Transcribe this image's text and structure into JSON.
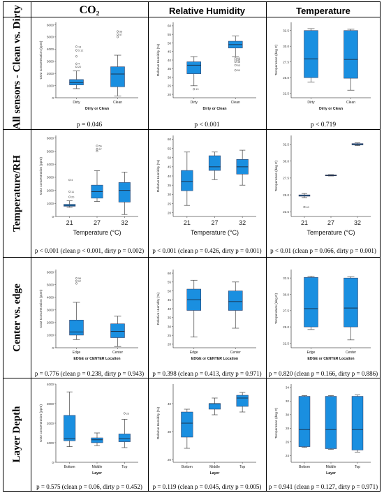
{
  "headers": {
    "col1": "CO₂",
    "col2": "Relative Humidity",
    "col3": "Temperature"
  },
  "rows": [
    {
      "label": "All sensors - Clean vs. Dirty"
    },
    {
      "label": "Temperature/RH"
    },
    {
      "label": "Center vs. edge"
    },
    {
      "label": "Layer Depth"
    }
  ],
  "pvalues": [
    [
      "p = 0.046",
      "p < 0.001",
      "p < 0.719"
    ],
    [
      "p < 0.001 (clean p < 0.001, dirty p = 0.002)",
      "p < 0.001 (clean p = 0.426, dirty p = 0.001)",
      "p < 0.01 (clean p = 0.066, dirty p = 0.001)"
    ],
    [
      "p = 0.776 (clean p = 0.238, dirty p = 0.943)",
      "p = 0.398 (clean p = 0.413, dirty p = 0.971)",
      "p = 0.820 (clean p = 0.166, dirty p = 0.886)"
    ],
    [
      "p = 0.575 (clean p = 0.06, dirty p = 0.452)",
      "p = 0.119 (clean p = 0.045, dirty p = 0.005)",
      "p = 0.941 (clean p = 0.127, dirty p = 0.971)"
    ]
  ],
  "colors": {
    "box": "#1a8fe0",
    "median": "#1a3550",
    "axis": "#555555"
  },
  "chart_data": [
    {
      "type": "box",
      "title": "",
      "xlabel": "Dirty or Clean",
      "ylabel": "CO2 Concentration (ppm)",
      "ylim": [
        0,
        6200
      ],
      "yticks": [
        0,
        1000,
        2000,
        3000,
        4000,
        5000,
        6000
      ],
      "ytick_labels": [
        "0",
        "1000",
        "2000",
        "3000",
        "4000",
        "5000",
        "6000"
      ],
      "categories": [
        "Dirty",
        "Clean"
      ],
      "boxes": [
        {
          "min": 750,
          "q1": 1050,
          "median": 1250,
          "q3": 1500,
          "max": 2200,
          "outliers": [
            {
              "y": 4200,
              "label": "13"
            },
            {
              "y": 3900,
              "label": "5 12"
            },
            {
              "y": 3400,
              "label": ""
            },
            {
              "y": 2800,
              "label": "4"
            },
            {
              "y": 2550,
              "label": "20"
            }
          ]
        },
        {
          "min": 150,
          "q1": 900,
          "median": 1950,
          "q3": 2550,
          "max": 3500,
          "outliers": [
            {
              "y": 5450,
              "label": "56"
            },
            {
              "y": 5200,
              "label": "57"
            },
            {
              "y": 5000,
              "label": ""
            }
          ]
        }
      ]
    },
    {
      "type": "box",
      "title": "",
      "xlabel": "Dirty or Clean",
      "ylabel": "Relative Humidity (%)",
      "ylim": [
        18,
        62
      ],
      "yticks": [
        20,
        25,
        30,
        35,
        40,
        45,
        50,
        55,
        60
      ],
      "ytick_labels": [
        "20",
        "25",
        "30",
        "35",
        "40",
        "45",
        "50",
        "55",
        "60"
      ],
      "categories": [
        "Dirty",
        "Clean"
      ],
      "boxes": [
        {
          "min": 25,
          "q1": 32,
          "median": 37,
          "q3": 39,
          "max": 42,
          "outliers": [
            {
              "y": 23,
              "label": "13"
            }
          ]
        },
        {
          "min": 42,
          "q1": 47,
          "median": 49,
          "q3": 51,
          "max": 54,
          "outliers": [
            {
              "y": 41,
              "label": "65"
            },
            {
              "y": 40,
              "label": "45"
            },
            {
              "y": 39,
              "label": "46"
            },
            {
              "y": 37,
              "label": "53"
            },
            {
              "y": 34,
              "label": "50"
            }
          ]
        }
      ]
    },
    {
      "type": "box",
      "title": "",
      "xlabel": "Dirty or Clean",
      "ylabel": "Temperature (deg C)",
      "ylim": [
        21.8,
        33.8
      ],
      "yticks": [
        22.5,
        25.0,
        27.5,
        30.0,
        32.5
      ],
      "ytick_labels": [
        "22.5",
        "25.0",
        "27.5",
        "30.0",
        "32.5"
      ],
      "categories": [
        "Dirty",
        "Clean"
      ],
      "boxes": [
        {
          "min": 24.3,
          "q1": 25.0,
          "median": 28.0,
          "q3": 32.5,
          "max": 32.8,
          "outliers": []
        },
        {
          "min": 23.0,
          "q1": 24.9,
          "median": 27.9,
          "q3": 32.5,
          "max": 32.7,
          "outliers": []
        }
      ]
    },
    {
      "type": "box",
      "title": "",
      "xlabel": "Temperature (°C)",
      "ylabel": "CO2 concentration (ppm)",
      "ylim": [
        0,
        6200
      ],
      "yticks": [
        0,
        1000,
        2000,
        3000,
        4000,
        5000,
        6000
      ],
      "ytick_labels": [
        "0",
        "1000",
        "2000",
        "3000",
        "4000",
        "5000",
        "6000"
      ],
      "categories": [
        "21",
        "27",
        "32"
      ],
      "boxes": [
        {
          "min": 700,
          "q1": 780,
          "median": 850,
          "q3": 930,
          "max": 1200,
          "outliers": [
            {
              "y": 2800,
              "label": "4"
            },
            {
              "y": 1900,
              "label": "11"
            },
            {
              "y": 1500,
              "label": "20"
            }
          ]
        },
        {
          "min": 1150,
          "q1": 1400,
          "median": 1900,
          "q3": 2400,
          "max": 3500,
          "outliers": [
            {
              "y": 5400,
              "label": "56"
            },
            {
              "y": 5150,
              "label": "57"
            },
            {
              "y": 5000,
              "label": ""
            }
          ]
        },
        {
          "min": 150,
          "q1": 1100,
          "median": 2000,
          "q3": 2600,
          "max": 3400,
          "outliers": []
        }
      ]
    },
    {
      "type": "box",
      "title": "",
      "xlabel": "Temperature (°C)",
      "ylabel": "Relative Humidity (%)",
      "ylim": [
        18,
        62
      ],
      "yticks": [
        20,
        25,
        30,
        35,
        40,
        45,
        50,
        55,
        60
      ],
      "ytick_labels": [
        "20",
        "25",
        "30",
        "35",
        "40",
        "45",
        "50",
        "55",
        "60"
      ],
      "categories": [
        "21",
        "27",
        "32"
      ],
      "boxes": [
        {
          "min": 24,
          "q1": 32,
          "median": 37,
          "q3": 43,
          "max": 53,
          "outliers": []
        },
        {
          "min": 38,
          "q1": 43,
          "median": 45,
          "q3": 51,
          "max": 53,
          "outliers": []
        },
        {
          "min": 35,
          "q1": 41,
          "median": 45,
          "q3": 49,
          "max": 54,
          "outliers": []
        }
      ]
    },
    {
      "type": "box",
      "title": "",
      "xlabel": "Temperature (°C)",
      "ylabel": "Temperature (deg C)",
      "ylim": [
        21.8,
        33.8
      ],
      "yticks": [
        22.5,
        25.0,
        27.5,
        30.0,
        32.5
      ],
      "ytick_labels": [
        "22.5",
        "25.0",
        "27.5",
        "30.0",
        "32.5"
      ],
      "categories": [
        "21",
        "27",
        "32"
      ],
      "boxes": [
        {
          "min": 24.6,
          "q1": 24.8,
          "median": 24.9,
          "q3": 25.0,
          "max": 25.2,
          "outliers": [
            {
              "y": 23.2,
              "label": "40"
            }
          ]
        },
        {
          "min": 27.8,
          "q1": 27.85,
          "median": 27.9,
          "q3": 27.95,
          "max": 28.0,
          "outliers": []
        },
        {
          "min": 32.3,
          "q1": 32.4,
          "median": 32.5,
          "q3": 32.6,
          "max": 32.7,
          "outliers": []
        }
      ]
    },
    {
      "type": "box",
      "title": "",
      "xlabel": "EDGE or CENTER Location",
      "ylabel": "CO2 Concentration (ppm)",
      "ylim": [
        0,
        6200
      ],
      "yticks": [
        0,
        1000,
        2000,
        3000,
        4000,
        5000,
        6000
      ],
      "ytick_labels": [
        "0",
        "1000",
        "2000",
        "3000",
        "4000",
        "5000",
        "6000"
      ],
      "categories": [
        "Edge",
        "Center"
      ],
      "boxes": [
        {
          "min": 650,
          "q1": 1000,
          "median": 1250,
          "q3": 2200,
          "max": 3600,
          "outliers": [
            {
              "y": 5500,
              "label": "56"
            },
            {
              "y": 5300,
              "label": "57"
            },
            {
              "y": 5100,
              "label": ""
            }
          ]
        },
        {
          "min": 100,
          "q1": 800,
          "median": 1300,
          "q3": 1900,
          "max": 2500,
          "outliers": []
        }
      ]
    },
    {
      "type": "box",
      "title": "",
      "xlabel": "EDGE or CENTER Location",
      "ylabel": "Relative Humidity (%)",
      "ylim": [
        18,
        62
      ],
      "yticks": [
        20,
        25,
        30,
        35,
        40,
        45,
        50,
        55,
        60
      ],
      "ytick_labels": [
        "20",
        "25",
        "30",
        "35",
        "40",
        "45",
        "50",
        "55",
        "60"
      ],
      "categories": [
        "Edge",
        "Center"
      ],
      "boxes": [
        {
          "min": 24,
          "q1": 39,
          "median": 45,
          "q3": 51,
          "max": 56,
          "outliers": []
        },
        {
          "min": 29,
          "q1": 39,
          "median": 44,
          "q3": 50,
          "max": 55,
          "outliers": []
        }
      ]
    },
    {
      "type": "box",
      "title": "",
      "xlabel": "EDGE or CENTER Location",
      "ylabel": "Temperature (deg C)",
      "ylim": [
        21.8,
        33.8
      ],
      "yticks": [
        22.5,
        25.0,
        27.5,
        30.0,
        32.5
      ],
      "ytick_labels": [
        "22.5",
        "25.0",
        "27.5",
        "30.0",
        "32.5"
      ],
      "categories": [
        "Edge",
        "Center"
      ],
      "boxes": [
        {
          "min": 24.6,
          "q1": 25.0,
          "median": 27.8,
          "q3": 32.6,
          "max": 32.8,
          "outliers": []
        },
        {
          "min": 23.0,
          "q1": 25.0,
          "median": 27.9,
          "q3": 32.5,
          "max": 32.7,
          "outliers": []
        }
      ]
    },
    {
      "type": "box",
      "title": "",
      "xlabel": "Layer",
      "ylabel": "CO2 concentration (ppm)",
      "ylim": [
        0,
        4000
      ],
      "yticks": [
        0,
        1000,
        2000,
        3000,
        4000
      ],
      "ytick_labels": [
        "0",
        "1000",
        "2000",
        "3000",
        "4000"
      ],
      "categories": [
        "Bottom",
        "Middle",
        "Top"
      ],
      "boxes": [
        {
          "min": 800,
          "q1": 1100,
          "median": 1200,
          "q3": 2400,
          "max": 3600,
          "outliers": []
        },
        {
          "min": 850,
          "q1": 1000,
          "median": 1150,
          "q3": 1250,
          "max": 1500,
          "outliers": []
        },
        {
          "min": 750,
          "q1": 1050,
          "median": 1200,
          "q3": 1450,
          "max": 2200,
          "outliers": [
            {
              "y": 2500,
              "label": "23"
            }
          ]
        }
      ]
    },
    {
      "type": "box",
      "title": "",
      "xlabel": "Layer",
      "ylabel": "Relative Humidity (%)",
      "ylim": [
        19,
        47
      ],
      "yticks": [
        20,
        30,
        40
      ],
      "ytick_labels": [
        "20",
        "30",
        "40"
      ],
      "categories": [
        "Bottom",
        "Middle",
        "Top"
      ],
      "boxes": [
        {
          "min": 24,
          "q1": 28,
          "median": 33,
          "q3": 37,
          "max": 38,
          "outliers": []
        },
        {
          "min": 36,
          "q1": 38,
          "median": 40,
          "q3": 40,
          "max": 42,
          "outliers": []
        },
        {
          "min": 37,
          "q1": 39,
          "median": 42,
          "q3": 43,
          "max": 44,
          "outliers": []
        }
      ]
    },
    {
      "type": "box",
      "title": "",
      "xlabel": "Layer",
      "ylabel": "Temperature (deg C)",
      "ylim": [
        23,
        34.5
      ],
      "yticks": [
        24,
        26,
        28,
        30,
        32,
        34
      ],
      "ytick_labels": [
        "24",
        "26",
        "28",
        "30",
        "32",
        "34"
      ],
      "categories": [
        "Bottom",
        "Middle",
        "Top"
      ],
      "boxes": [
        {
          "min": 25.2,
          "q1": 25.3,
          "median": 27.8,
          "q3": 32.7,
          "max": 32.8,
          "outliers": []
        },
        {
          "min": 24.9,
          "q1": 25.0,
          "median": 27.8,
          "q3": 32.7,
          "max": 32.8,
          "outliers": []
        },
        {
          "min": 24.5,
          "q1": 24.8,
          "median": 27.8,
          "q3": 32.7,
          "max": 32.9,
          "outliers": []
        }
      ]
    }
  ]
}
